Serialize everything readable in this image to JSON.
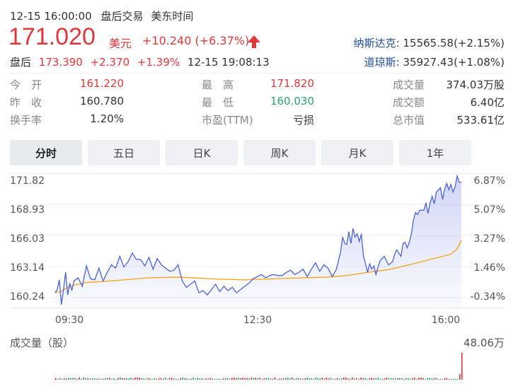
{
  "header": {
    "datetime": "12-15 16:00:00",
    "session": "盘后交易",
    "timezone": "美东时间"
  },
  "quote": {
    "price": "171.020",
    "currency": "美元",
    "change": "+10.240",
    "change_pct": "(+6.37%)",
    "after_label": "盘后",
    "after_price": "173.390",
    "after_change": "+2.370",
    "after_pct": "+1.39%",
    "after_time": "12-15 19:08:13"
  },
  "indices": [
    {
      "name": "纳斯达克:",
      "value": "15565.58(+2.15%)"
    },
    {
      "name": "道琼斯:",
      "value": "35927.43(+1.08%)"
    }
  ],
  "stats": {
    "open_label": "今　开",
    "open": "161.220",
    "high_label": "最　高",
    "high": "171.820",
    "volume_label": "成交量",
    "volume": "374.03万股",
    "prev_label": "昨　收",
    "prev": "160.780",
    "low_label": "最　低",
    "low": "160.030",
    "turnover_label": "成交额",
    "turnover": "6.40亿",
    "rate_label": "换手率",
    "rate": "1.20%",
    "pe_label": "市盈(TTM)",
    "pe": "亏损",
    "cap_label": "总市值",
    "cap": "533.61亿"
  },
  "tabs": [
    "分时",
    "五日",
    "日K",
    "周K",
    "月K",
    "1年"
  ],
  "volume_panel": {
    "label": "成交量（股）",
    "max": "48.06万"
  },
  "colors": {
    "up": "#e0373a",
    "down": "#2aa56b",
    "price_line": "#4a62d8",
    "avg_line": "#f5a623",
    "index_link": "#1e4b99"
  },
  "chart_data": {
    "type": "line",
    "x_tick_labels": [
      "09:30",
      "12:30",
      "16:00"
    ],
    "y_tick_labels": [
      "171.82",
      "168.93",
      "166.03",
      "163.14",
      "160.24"
    ],
    "y_pct_labels": [
      "6.87%",
      "5.07%",
      "3.27%",
      "1.46%",
      "-0.34%"
    ],
    "ylim": [
      159.25,
      172.05
    ],
    "x_range_minutes": [
      0,
      390
    ],
    "series": [
      {
        "points": [
          [
            0,
            160.7
          ],
          [
            2,
            161.0
          ],
          [
            4,
            161.9
          ],
          [
            6,
            159.6
          ],
          [
            8,
            161.0
          ],
          [
            10,
            162.6
          ],
          [
            12,
            160.5
          ],
          [
            14,
            161.6
          ],
          [
            16,
            160.9
          ],
          [
            18,
            161.8
          ],
          [
            22,
            162.1
          ],
          [
            26,
            161.3
          ],
          [
            30,
            163.2
          ],
          [
            34,
            162.0
          ],
          [
            38,
            161.9
          ],
          [
            42,
            163.0
          ],
          [
            46,
            161.8
          ],
          [
            50,
            162.6
          ],
          [
            54,
            163.3
          ],
          [
            58,
            163.0
          ],
          [
            62,
            164.1
          ],
          [
            66,
            163.1
          ],
          [
            70,
            163.6
          ],
          [
            74,
            164.4
          ],
          [
            78,
            163.8
          ],
          [
            82,
            163.8
          ],
          [
            86,
            163.2
          ],
          [
            90,
            164.0
          ],
          [
            94,
            162.9
          ],
          [
            98,
            163.9
          ],
          [
            102,
            163.3
          ],
          [
            106,
            163.0
          ],
          [
            110,
            162.7
          ],
          [
            114,
            162.8
          ],
          [
            118,
            163.3
          ],
          [
            122,
            161.8
          ],
          [
            126,
            161.2
          ],
          [
            130,
            161.5
          ],
          [
            134,
            161.8
          ],
          [
            138,
            160.7
          ],
          [
            142,
            160.9
          ],
          [
            146,
            160.5
          ],
          [
            150,
            161.0
          ],
          [
            154,
            161.5
          ],
          [
            158,
            160.8
          ],
          [
            162,
            161.3
          ],
          [
            166,
            160.9
          ],
          [
            170,
            161.2
          ],
          [
            174,
            160.7
          ],
          [
            178,
            161.0
          ],
          [
            182,
            161.3
          ],
          [
            186,
            161.6
          ],
          [
            190,
            162.0
          ],
          [
            194,
            162.2
          ],
          [
            198,
            162.4
          ],
          [
            202,
            162.1
          ],
          [
            206,
            162.3
          ],
          [
            210,
            162.4
          ],
          [
            214,
            162.3
          ],
          [
            218,
            162.3
          ],
          [
            222,
            162.6
          ],
          [
            226,
            162.8
          ],
          [
            230,
            162.4
          ],
          [
            234,
            162.6
          ],
          [
            238,
            162.9
          ],
          [
            242,
            162.2
          ],
          [
            246,
            162.9
          ],
          [
            250,
            163.5
          ],
          [
            254,
            162.7
          ],
          [
            258,
            163.3
          ],
          [
            262,
            163.0
          ],
          [
            266,
            162.2
          ],
          [
            270,
            162.9
          ],
          [
            274,
            164.5
          ],
          [
            276,
            165.9
          ],
          [
            278,
            165.3
          ],
          [
            280,
            165.2
          ],
          [
            282,
            166.4
          ],
          [
            284,
            165.3
          ],
          [
            286,
            166.7
          ],
          [
            288,
            165.9
          ],
          [
            290,
            166.2
          ],
          [
            292,
            165.5
          ],
          [
            294,
            166.2
          ],
          [
            296,
            164.1
          ],
          [
            298,
            163.4
          ],
          [
            300,
            162.6
          ],
          [
            302,
            163.4
          ],
          [
            304,
            162.9
          ],
          [
            306,
            163.2
          ],
          [
            308,
            162.4
          ],
          [
            310,
            163.1
          ],
          [
            312,
            163.7
          ],
          [
            316,
            164.1
          ],
          [
            320,
            163.3
          ],
          [
            324,
            163.6
          ],
          [
            326,
            164.3
          ],
          [
            328,
            164.7
          ],
          [
            332,
            164.1
          ],
          [
            334,
            165.3
          ],
          [
            336,
            165.4
          ],
          [
            338,
            164.9
          ],
          [
            340,
            165.4
          ],
          [
            342,
            166.2
          ],
          [
            344,
            167.5
          ],
          [
            346,
            168.2
          ],
          [
            348,
            168.0
          ],
          [
            350,
            168.4
          ],
          [
            354,
            168.4
          ],
          [
            356,
            169.1
          ],
          [
            358,
            168.1
          ],
          [
            360,
            169.1
          ],
          [
            362,
            169.7
          ],
          [
            364,
            169.0
          ],
          [
            366,
            170.1
          ],
          [
            370,
            170.5
          ],
          [
            372,
            169.4
          ],
          [
            374,
            170.4
          ],
          [
            376,
            170.9
          ],
          [
            378,
            170.3
          ],
          [
            380,
            170.8
          ],
          [
            382,
            170.1
          ],
          [
            384,
            170.6
          ],
          [
            386,
            171.6
          ],
          [
            388,
            171.0
          ],
          [
            390,
            171.0
          ]
        ]
      },
      {
        "points": [
          [
            0,
            160.7
          ],
          [
            6,
            160.85
          ],
          [
            12,
            161.2
          ],
          [
            18,
            161.4
          ],
          [
            30,
            161.65
          ],
          [
            60,
            161.85
          ],
          [
            90,
            162.1
          ],
          [
            120,
            162.15
          ],
          [
            150,
            162.0
          ],
          [
            180,
            161.9
          ],
          [
            210,
            162.0
          ],
          [
            240,
            162.1
          ],
          [
            260,
            162.15
          ],
          [
            280,
            162.3
          ],
          [
            300,
            162.6
          ],
          [
            320,
            162.85
          ],
          [
            340,
            163.3
          ],
          [
            360,
            163.8
          ],
          [
            380,
            164.3
          ],
          [
            386,
            164.8
          ],
          [
            390,
            165.6
          ]
        ]
      }
    ],
    "volume_max": 480600
  }
}
